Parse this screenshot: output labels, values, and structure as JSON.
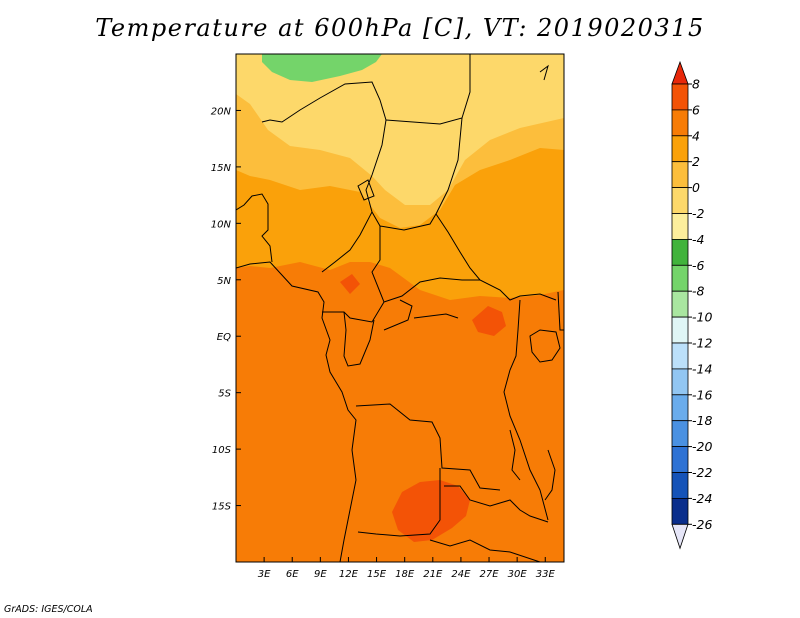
{
  "title": "Temperature at 600hPa [C], VT: 2019020315",
  "credit": "GrADS: IGES/COLA",
  "map": {
    "lon_range": [
      0,
      35
    ],
    "lat_range": [
      -20,
      25
    ],
    "lon_ticks": [
      {
        "value": 3,
        "label": "3E"
      },
      {
        "value": 6,
        "label": "6E"
      },
      {
        "value": 9,
        "label": "9E"
      },
      {
        "value": 12,
        "label": "12E"
      },
      {
        "value": 15,
        "label": "15E"
      },
      {
        "value": 18,
        "label": "18E"
      },
      {
        "value": 21,
        "label": "21E"
      },
      {
        "value": 24,
        "label": "24E"
      },
      {
        "value": 27,
        "label": "27E"
      },
      {
        "value": 30,
        "label": "30E"
      },
      {
        "value": 33,
        "label": "33E"
      }
    ],
    "lat_ticks": [
      {
        "value": 20,
        "label": "20N"
      },
      {
        "value": 15,
        "label": "15N"
      },
      {
        "value": 10,
        "label": "10N"
      },
      {
        "value": 5,
        "label": "5N"
      },
      {
        "value": 0,
        "label": "EQ"
      },
      {
        "value": -5,
        "label": "5S"
      },
      {
        "value": -10,
        "label": "10S"
      },
      {
        "value": -15,
        "label": "15S"
      }
    ]
  },
  "colorbar": {
    "labels": [
      "8",
      "6",
      "4",
      "2",
      "0",
      "-2",
      "-4",
      "-6",
      "-8",
      "-10",
      "-12",
      "-14",
      "-16",
      "-18",
      "-20",
      "-22",
      "-24",
      "-26"
    ],
    "colors": [
      "#e8280a",
      "#f35306",
      "#f77c06",
      "#faa10a",
      "#fcbe3c",
      "#fdd86a",
      "#fcee9c",
      "#41b33c",
      "#74d46a",
      "#a9e6a0",
      "#e0f6f6",
      "#bce0fa",
      "#92c6f2",
      "#6aacec",
      "#4a91e2",
      "#2e72d4",
      "#1553b8",
      "#0a2e8c",
      "#0a1460",
      "#e6e6f8"
    ],
    "fields": {
      "very_warm": "#f77c06",
      "warm": "#faa10a",
      "mild": "#fcbe3c",
      "cool": "#fdd86a",
      "cooler": "#fcee9c",
      "green": "#74d46a",
      "hot": "#f35306"
    }
  }
}
